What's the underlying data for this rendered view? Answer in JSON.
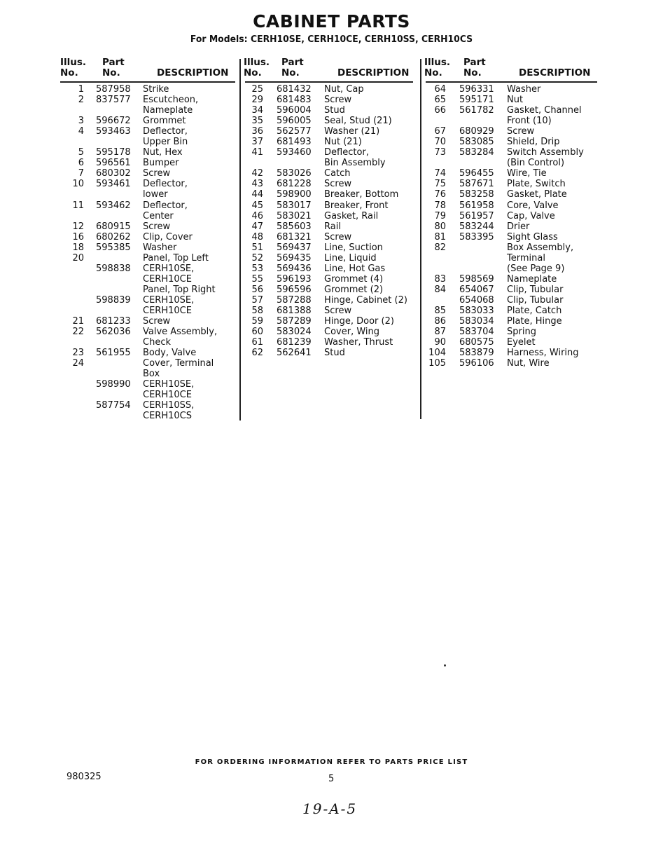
{
  "title": "CABINET PARTS",
  "subtitle": "For Models: CERH10SE, CERH10CE, CERH10SS, CERH10CS",
  "headers": {
    "illus_1": "Illus.",
    "illus_2": "No.",
    "part_1": "Part",
    "part_2": "No.",
    "description": "DESCRIPTION"
  },
  "columns": [
    {
      "rows": [
        [
          "1",
          "587958",
          "Strike"
        ],
        [
          "2",
          "837577",
          "Escutcheon,"
        ],
        [
          "",
          "",
          "Nameplate"
        ],
        [
          "3",
          "596672",
          "Grommet"
        ],
        [
          "4",
          "593463",
          "Deflector,"
        ],
        [
          "",
          "",
          "Upper Bin"
        ],
        [
          "5",
          "595178",
          "Nut, Hex"
        ],
        [
          "6",
          "596561",
          "Bumper"
        ],
        [
          "7",
          "680302",
          "Screw"
        ],
        [
          "10",
          "593461",
          "Deflector,"
        ],
        [
          "",
          "",
          "lower"
        ],
        [
          "11",
          "593462",
          "Deflector,"
        ],
        [
          "",
          "",
          "Center"
        ],
        [
          "12",
          "680915",
          "Screw"
        ],
        [
          "16",
          "680262",
          "Clip, Cover"
        ],
        [
          "18",
          "595385",
          "Washer"
        ],
        [
          "20",
          "",
          "Panel, Top Left"
        ],
        [
          "",
          "598838",
          "CERH10SE,"
        ],
        [
          "",
          "",
          "CERH10CE"
        ],
        [
          "",
          "",
          "Panel, Top Right"
        ],
        [
          "",
          "598839",
          "CERH10SE,"
        ],
        [
          "",
          "",
          "CERH10CE"
        ],
        [
          "21",
          "681233",
          "Screw"
        ],
        [
          "22",
          "562036",
          "Valve Assembly,"
        ],
        [
          "",
          "",
          "Check"
        ],
        [
          "23",
          "561955",
          "Body, Valve"
        ],
        [
          "24",
          "",
          "Cover, Terminal"
        ],
        [
          "",
          "",
          "Box"
        ],
        [
          "",
          "598990",
          "CERH10SE,"
        ],
        [
          "",
          "",
          "CERH10CE"
        ],
        [
          "",
          "587754",
          "CERH10SS,"
        ],
        [
          "",
          "",
          "CERH10CS"
        ]
      ]
    },
    {
      "rows": [
        [
          "25",
          "681432",
          "Nut, Cap"
        ],
        [
          "29",
          "681483",
          "Screw"
        ],
        [
          "34",
          "596004",
          "Stud"
        ],
        [
          "35",
          "596005",
          "Seal, Stud (21)"
        ],
        [
          "36",
          "562577",
          "Washer (21)"
        ],
        [
          "37",
          "681493",
          "Nut (21)"
        ],
        [
          "41",
          "593460",
          "Deflector,"
        ],
        [
          "",
          "",
          "Bin Assembly"
        ],
        [
          "42",
          "583026",
          "Catch"
        ],
        [
          "43",
          "681228",
          "Screw"
        ],
        [
          "44",
          "598900",
          "Breaker, Bottom"
        ],
        [
          "45",
          "583017",
          "Breaker, Front"
        ],
        [
          "46",
          "583021",
          "Gasket, Rail"
        ],
        [
          "47",
          "585603",
          "Rail"
        ],
        [
          "48",
          "681321",
          "Screw"
        ],
        [
          "51",
          "569437",
          "Line, Suction"
        ],
        [
          "52",
          "569435",
          "Line, Liquid"
        ],
        [
          "53",
          "569436",
          "Line, Hot Gas"
        ],
        [
          "55",
          "596193",
          "Grommet (4)"
        ],
        [
          "56",
          "596596",
          "Grommet (2)"
        ],
        [
          "57",
          "587288",
          "Hinge, Cabinet (2)"
        ],
        [
          "58",
          "681388",
          "Screw"
        ],
        [
          "59",
          "587289",
          "Hinge, Door (2)"
        ],
        [
          "60",
          "583024",
          "Cover, Wing"
        ],
        [
          "61",
          "681239",
          "Washer, Thrust"
        ],
        [
          "62",
          "562641",
          "Stud"
        ]
      ]
    },
    {
      "rows": [
        [
          "64",
          "596331",
          "Washer"
        ],
        [
          "65",
          "595171",
          "Nut"
        ],
        [
          "66",
          "561782",
          "Gasket, Channel"
        ],
        [
          "",
          "",
          "Front (10)"
        ],
        [
          "67",
          "680929",
          "Screw"
        ],
        [
          "70",
          "583085",
          "Shield, Drip"
        ],
        [
          "73",
          "583284",
          "Switch Assembly"
        ],
        [
          "",
          "",
          "(Bin Control)"
        ],
        [
          "74",
          "596455",
          "Wire, Tie"
        ],
        [
          "75",
          "587671",
          "Plate, Switch"
        ],
        [
          "76",
          "583258",
          "Gasket, Plate"
        ],
        [
          "78",
          "561958",
          "Core, Valve"
        ],
        [
          "79",
          "561957",
          "Cap, Valve"
        ],
        [
          "80",
          "583244",
          "Drier"
        ],
        [
          "81",
          "583395",
          "Sight Glass"
        ],
        [
          "82",
          "",
          "Box Assembly,"
        ],
        [
          "",
          "",
          "Terminal"
        ],
        [
          "",
          "",
          "(See Page 9)"
        ],
        [
          "83",
          "598569",
          "Nameplate"
        ],
        [
          "84",
          "654067",
          "Clip, Tubular"
        ],
        [
          "",
          "654068",
          "Clip, Tubular"
        ],
        [
          "85",
          "583033",
          "Plate, Catch"
        ],
        [
          "86",
          "583034",
          "Plate, Hinge"
        ],
        [
          "87",
          "583704",
          "Spring"
        ],
        [
          "90",
          "680575",
          "Eyelet"
        ],
        [
          "104",
          "583879",
          "Harness, Wiring"
        ],
        [
          "105",
          "596106",
          "Nut, Wire"
        ]
      ]
    }
  ],
  "footer": {
    "ordering_note": "FOR ORDERING INFORMATION REFER TO PARTS PRICE LIST",
    "document_number": "980325",
    "page_number": "5",
    "handwritten_note": "19-A-5"
  }
}
